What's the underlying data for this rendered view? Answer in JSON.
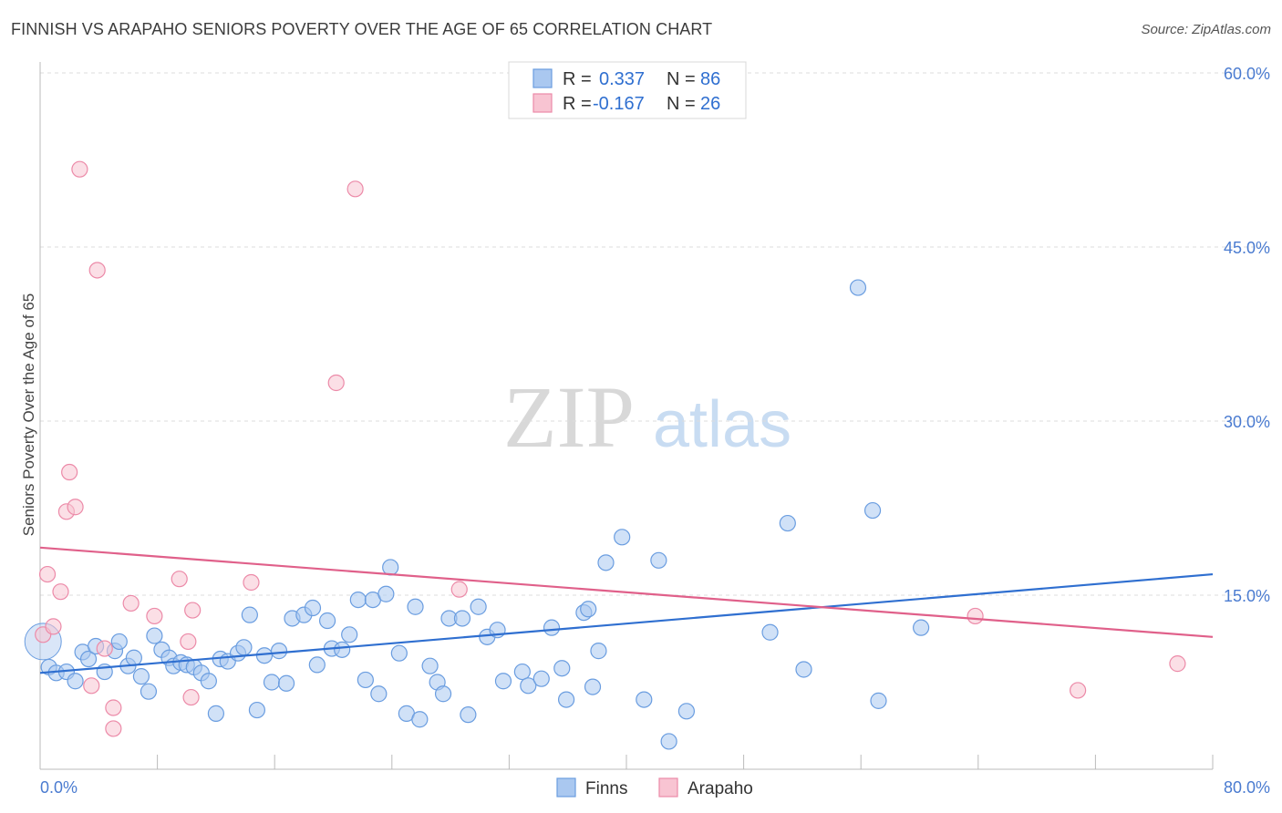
{
  "header": {
    "title": "FINNISH VS ARAPAHO SENIORS POVERTY OVER THE AGE OF 65 CORRELATION CHART",
    "source": "Source: ZipAtlas.com"
  },
  "legend": {
    "rows": [
      {
        "r_label": "R =",
        "r_value": "0.337",
        "n_label": "N =",
        "n_value": "86"
      },
      {
        "r_label": "R =",
        "r_value": "-0.167",
        "n_label": "N =",
        "n_value": "26"
      }
    ]
  },
  "watermark": {
    "zip": "ZIP",
    "atlas": "atlas"
  },
  "colors": {
    "finns_fill": "#aac8f0",
    "finns_stroke": "#6a9de0",
    "finns_line": "#2f6fd0",
    "arapaho_fill": "#f8c4d2",
    "arapaho_stroke": "#ec8aa8",
    "arapaho_line": "#e0608a",
    "tick_text": "#4a7bd0",
    "grid": "#dddddd"
  },
  "chart_data": {
    "type": "scatter",
    "xlabel": "",
    "ylabel": "Seniors Poverty Over the Age of 65",
    "xlim": [
      0,
      80
    ],
    "ylim": [
      0,
      60
    ],
    "x_tick_labels": [
      "0.0%",
      "80.0%"
    ],
    "y_ticks": [
      15,
      30,
      45,
      60
    ],
    "y_tick_labels": [
      "15.0%",
      "30.0%",
      "45.0%",
      "60.0%"
    ],
    "grid": "horizontal dashed",
    "legend_placement": "bottom-center",
    "series": [
      {
        "name": "Finns",
        "trend": {
          "x": [
            0,
            80
          ],
          "y": [
            8.3,
            16.8
          ]
        },
        "points": [
          [
            0.2,
            11.0
          ],
          [
            0.6,
            8.8
          ],
          [
            1.1,
            8.3
          ],
          [
            1.8,
            8.4
          ],
          [
            2.4,
            7.6
          ],
          [
            2.9,
            10.1
          ],
          [
            3.3,
            9.5
          ],
          [
            3.8,
            10.6
          ],
          [
            4.4,
            8.4
          ],
          [
            5.1,
            10.2
          ],
          [
            5.4,
            11.0
          ],
          [
            6.0,
            8.9
          ],
          [
            6.4,
            9.6
          ],
          [
            6.9,
            8.0
          ],
          [
            7.4,
            6.7
          ],
          [
            7.8,
            11.5
          ],
          [
            8.3,
            10.3
          ],
          [
            8.8,
            9.6
          ],
          [
            9.1,
            8.9
          ],
          [
            9.6,
            9.2
          ],
          [
            10.0,
            9.0
          ],
          [
            10.5,
            8.8
          ],
          [
            11.0,
            8.3
          ],
          [
            11.5,
            7.6
          ],
          [
            12.0,
            4.8
          ],
          [
            12.3,
            9.5
          ],
          [
            12.8,
            9.3
          ],
          [
            13.5,
            10.0
          ],
          [
            13.9,
            10.5
          ],
          [
            14.3,
            13.3
          ],
          [
            14.8,
            5.1
          ],
          [
            15.3,
            9.8
          ],
          [
            15.8,
            7.5
          ],
          [
            16.3,
            10.2
          ],
          [
            16.8,
            7.4
          ],
          [
            17.2,
            13.0
          ],
          [
            18.0,
            13.3
          ],
          [
            18.6,
            13.9
          ],
          [
            18.9,
            9.0
          ],
          [
            19.6,
            12.8
          ],
          [
            19.9,
            10.4
          ],
          [
            20.6,
            10.3
          ],
          [
            21.1,
            11.6
          ],
          [
            21.7,
            14.6
          ],
          [
            22.2,
            7.7
          ],
          [
            22.7,
            14.6
          ],
          [
            23.1,
            6.5
          ],
          [
            23.6,
            15.1
          ],
          [
            23.9,
            17.4
          ],
          [
            24.5,
            10.0
          ],
          [
            25.0,
            4.8
          ],
          [
            25.6,
            14.0
          ],
          [
            25.9,
            4.3
          ],
          [
            26.6,
            8.9
          ],
          [
            27.1,
            7.5
          ],
          [
            27.5,
            6.5
          ],
          [
            27.9,
            13.0
          ],
          [
            28.8,
            13.0
          ],
          [
            29.2,
            4.7
          ],
          [
            29.9,
            14.0
          ],
          [
            30.5,
            11.4
          ],
          [
            31.2,
            12.0
          ],
          [
            31.6,
            7.6
          ],
          [
            32.9,
            8.4
          ],
          [
            33.3,
            7.2
          ],
          [
            34.2,
            7.8
          ],
          [
            34.9,
            12.2
          ],
          [
            35.6,
            8.7
          ],
          [
            35.9,
            6.0
          ],
          [
            37.1,
            13.5
          ],
          [
            37.4,
            13.8
          ],
          [
            37.7,
            7.1
          ],
          [
            38.1,
            10.2
          ],
          [
            38.6,
            17.8
          ],
          [
            39.7,
            20.0
          ],
          [
            41.2,
            6.0
          ],
          [
            42.2,
            18.0
          ],
          [
            42.9,
            2.4
          ],
          [
            44.1,
            5.0
          ],
          [
            49.8,
            11.8
          ],
          [
            51.0,
            21.2
          ],
          [
            52.1,
            8.6
          ],
          [
            55.8,
            41.5
          ],
          [
            56.8,
            22.3
          ],
          [
            57.2,
            5.9
          ],
          [
            60.1,
            12.2
          ]
        ]
      },
      {
        "name": "Arapaho",
        "trend": {
          "x": [
            0,
            80
          ],
          "y": [
            19.1,
            11.4
          ]
        },
        "points": [
          [
            0.2,
            11.6
          ],
          [
            0.5,
            16.8
          ],
          [
            0.9,
            12.3
          ],
          [
            1.4,
            15.3
          ],
          [
            1.8,
            22.2
          ],
          [
            2.0,
            25.6
          ],
          [
            2.4,
            22.6
          ],
          [
            2.7,
            51.7
          ],
          [
            3.5,
            7.2
          ],
          [
            3.9,
            43.0
          ],
          [
            4.4,
            10.4
          ],
          [
            5.0,
            5.3
          ],
          [
            5.0,
            3.5
          ],
          [
            6.2,
            14.3
          ],
          [
            7.8,
            13.2
          ],
          [
            9.5,
            16.4
          ],
          [
            10.1,
            11.0
          ],
          [
            10.3,
            6.2
          ],
          [
            10.4,
            13.7
          ],
          [
            14.4,
            16.1
          ],
          [
            20.2,
            33.3
          ],
          [
            21.5,
            50.0
          ],
          [
            28.6,
            15.5
          ],
          [
            63.8,
            13.2
          ],
          [
            70.8,
            6.8
          ],
          [
            77.6,
            9.1
          ]
        ]
      }
    ]
  },
  "bottom_legend": {
    "finns": "Finns",
    "arapaho": "Arapaho"
  }
}
